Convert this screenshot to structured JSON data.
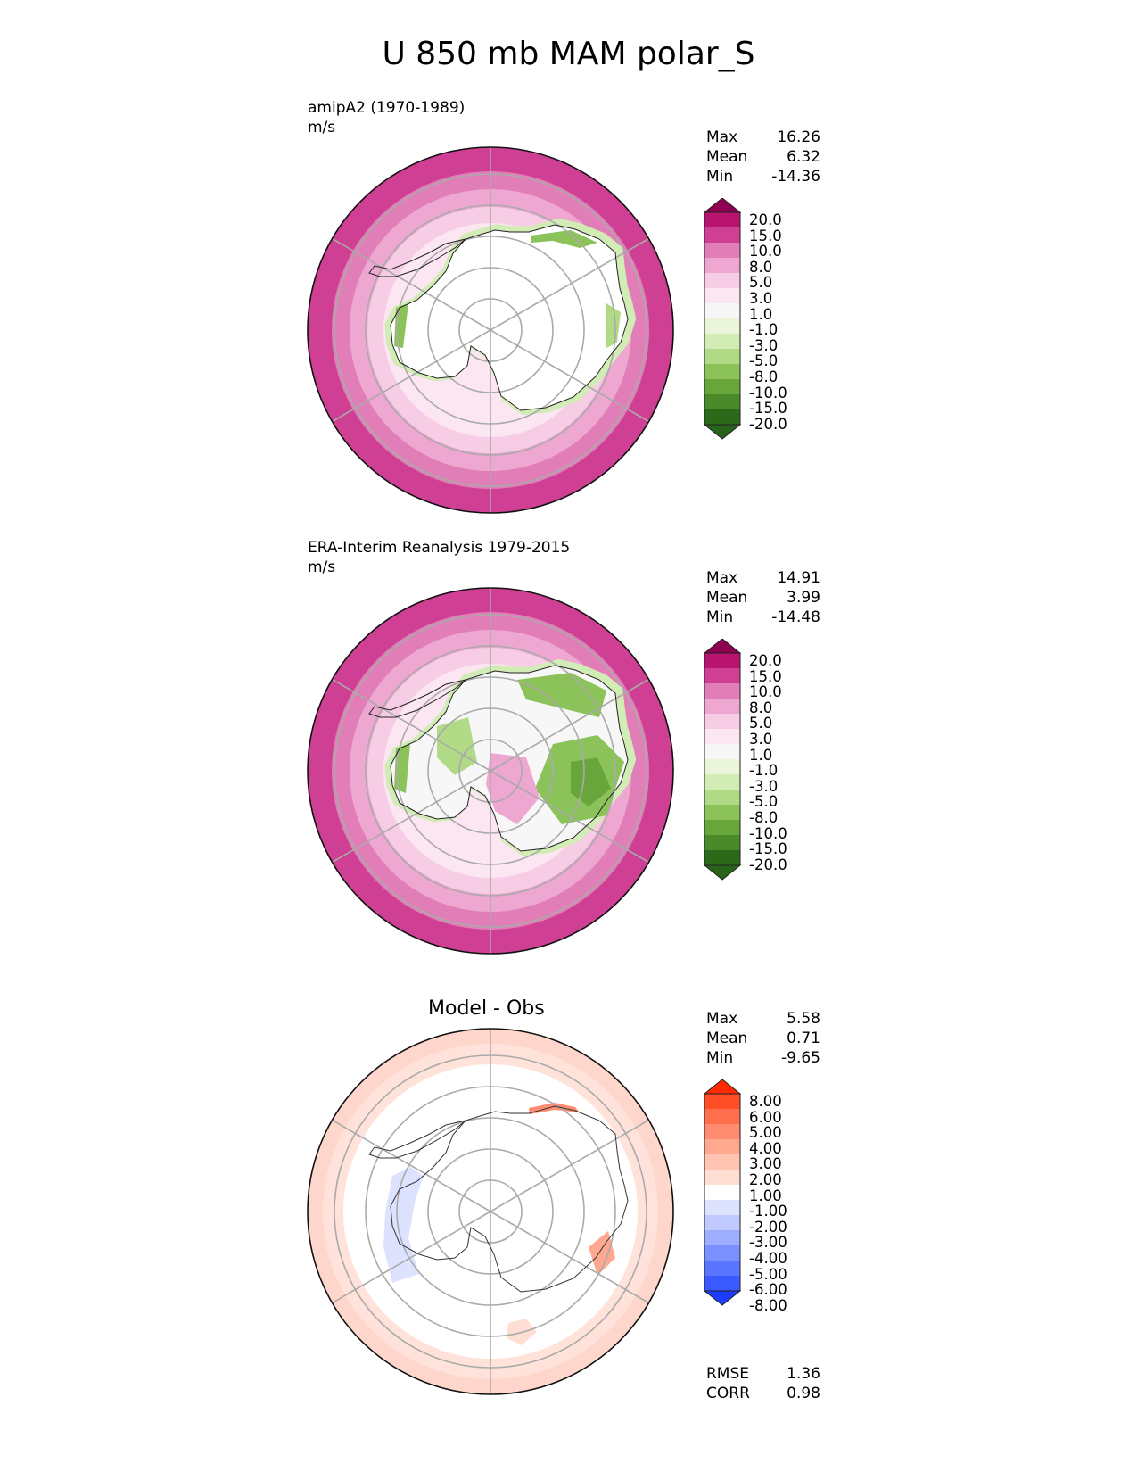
{
  "title": "U 850 mb MAM polar_S",
  "panels": [
    {
      "label": "amipA2 (1970-1989)",
      "units": "m/s",
      "stats": {
        "max_label": "Max",
        "max": "16.26",
        "mean_label": "Mean",
        "mean": "6.32",
        "min_label": "Min",
        "min": "-14.36"
      },
      "colorbar": {
        "labels": [
          "20.0",
          "15.0",
          "10.0",
          "8.0",
          "5.0",
          "3.0",
          "1.0",
          "-1.0",
          "-3.0",
          "-5.0",
          "-8.0",
          "-10.0",
          "-15.0",
          "-20.0"
        ],
        "colors": [
          "#8e0152",
          "#b7136f",
          "#cf3f93",
          "#e27eb7",
          "#eea7d0",
          "#f7cde6",
          "#fbe6f1",
          "#f7f7f7",
          "#eaf5da",
          "#d2ecb5",
          "#b0da85",
          "#8cc25a",
          "#68a63c",
          "#4a8a2a",
          "#2c6a1a",
          "#276419"
        ]
      }
    },
    {
      "label": "ERA-Interim Reanalysis 1979-2015",
      "units": "m/s",
      "stats": {
        "max_label": "Max",
        "max": "14.91",
        "mean_label": "Mean",
        "mean": "3.99",
        "min_label": "Min",
        "min": "-14.48"
      },
      "colorbar": {
        "labels": [
          "20.0",
          "15.0",
          "10.0",
          "8.0",
          "5.0",
          "3.0",
          "1.0",
          "-1.0",
          "-3.0",
          "-5.0",
          "-8.0",
          "-10.0",
          "-15.0",
          "-20.0"
        ],
        "colors": [
          "#8e0152",
          "#b7136f",
          "#cf3f93",
          "#e27eb7",
          "#eea7d0",
          "#f7cde6",
          "#fbe6f1",
          "#f7f7f7",
          "#eaf5da",
          "#d2ecb5",
          "#b0da85",
          "#8cc25a",
          "#68a63c",
          "#4a8a2a",
          "#2c6a1a",
          "#276419"
        ]
      }
    },
    {
      "title": "Model - Obs",
      "stats": {
        "max_label": "Max",
        "max": "5.58",
        "mean_label": "Mean",
        "mean": "0.71",
        "min_label": "Min",
        "min": "-9.65"
      },
      "colorbar": {
        "labels": [
          "8.00",
          "6.00",
          "5.00",
          "4.00",
          "3.00",
          "2.00",
          "1.00",
          "-1.00",
          "-2.00",
          "-3.00",
          "-4.00",
          "-5.00",
          "-6.00",
          "-8.00"
        ],
        "colors": [
          "#ff2a00",
          "#ff4d26",
          "#ff6e4d",
          "#ff8c70",
          "#ffa890",
          "#ffc4b2",
          "#ffdfd3",
          "#ffffff",
          "#dde3ff",
          "#c0caff",
          "#9dadff",
          "#7a90ff",
          "#5a75ff",
          "#3a59ff",
          "#1d3cff"
        ]
      },
      "error_stats": {
        "rmse_label": "RMSE",
        "rmse": "1.36",
        "corr_label": "CORR",
        "corr": "0.98"
      }
    }
  ]
}
